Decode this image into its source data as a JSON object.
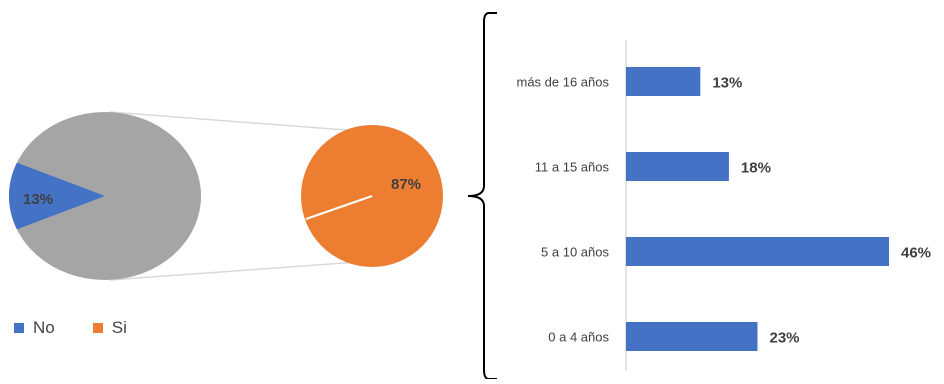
{
  "colors": {
    "no": "#4472c4",
    "si": "#ed7d31",
    "grey": "#a5a5a5",
    "bar": "#4472c4",
    "connector": "#d9d9d9",
    "bracket": "#000000",
    "axis": "#d9d9d9"
  },
  "chart_data": [
    {
      "type": "pie",
      "categories": [
        "No",
        "Si"
      ],
      "values": [
        13,
        87
      ],
      "data_labels": [
        "13%",
        "87%"
      ],
      "legend": {
        "position": "bottom-left",
        "entries": [
          "No",
          "Si"
        ]
      }
    },
    {
      "type": "bar",
      "orientation": "horizontal",
      "categories": [
        "más de 16 años",
        "11 a 15 años",
        "5 a 10 años",
        "0 a 4 años"
      ],
      "values": [
        13,
        18,
        46,
        23
      ],
      "data_labels": [
        "13%",
        "18%",
        "46%",
        "23%"
      ],
      "xlim": [
        0,
        46
      ],
      "grid": false
    }
  ]
}
